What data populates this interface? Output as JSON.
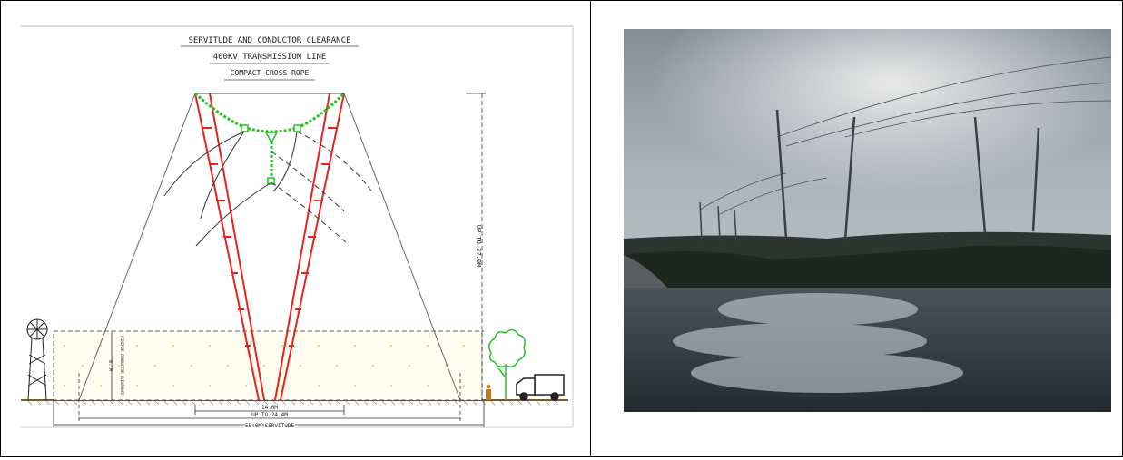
{
  "diagram": {
    "title_line1": "SERVITUDE AND CONDUCTOR CLEARANCE",
    "title_line2": "400KV TRANSMISSION LINE",
    "title_line3": "COMPACT CROSS ROPE",
    "height_dim": "UP TO 37.0M",
    "clearance_dim": "MINIMUM CONDUCTOR CLEARANCE",
    "clearance_value": "8.1M",
    "base_dim": "14.0M",
    "mid_dim": "UP TO 24.4M",
    "servitude_dim": "55.0M SERVITUDE"
  },
  "photo": {
    "description_visible": ""
  },
  "colors": {
    "tower": "#e8231d",
    "crossrope": "#22c320",
    "guy": "#555555",
    "sky_top": "#9aa3ad",
    "water": "#2a2f38"
  }
}
